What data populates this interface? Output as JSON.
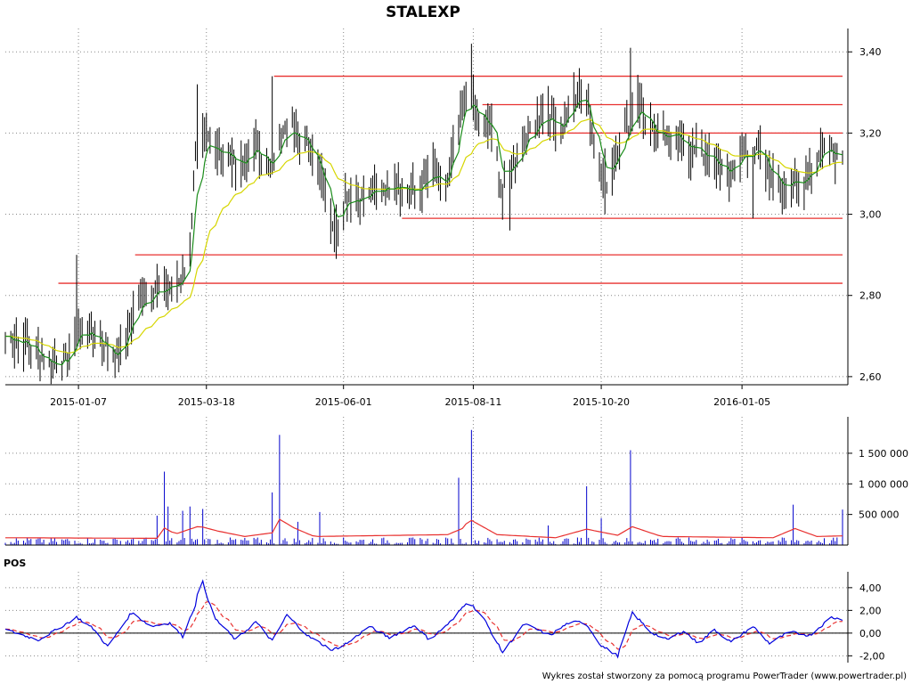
{
  "chart_data": {
    "title": "STALEXP",
    "footer": "Wykres został stworzony za pomocą programu PowerTrader (www.powertrader.pl)",
    "colors": {
      "candle": "#000000",
      "ma_short": "#1a8c1a",
      "ma_long": "#d6d600",
      "level": "#e8302f",
      "volume_bar": "#0000cc",
      "volume_ma": "#e8302f",
      "pos_line": "#0000dd",
      "pos_signal": "#e8302f",
      "grid": "#888888"
    },
    "price_panel": {
      "type": "bar",
      "ylim": [
        2.58,
        3.44
      ],
      "y_ticks": [
        "2,60",
        "2,80",
        "3,00",
        "3,20",
        "3,40"
      ],
      "x_ticks": [
        "2015-01-07",
        "2015-03-18",
        "2015-06-01",
        "2015-08-11",
        "2015-10-20",
        "2016-01-05"
      ],
      "grid": true,
      "support_resistance": [
        {
          "value": 2.83,
          "from": "2014-12-27",
          "to": "2016-02-29"
        },
        {
          "value": 2.9,
          "from": "2015-02-07",
          "to": "2016-02-29"
        },
        {
          "value": 2.99,
          "from": "2015-07-03",
          "to": "2016-02-29"
        },
        {
          "value": 3.2,
          "from": "2015-09-10",
          "to": "2016-02-29"
        },
        {
          "value": 3.27,
          "from": "2015-08-16",
          "to": "2016-02-29"
        },
        {
          "value": 3.34,
          "from": "2015-04-24",
          "to": "2016-02-29"
        }
      ],
      "anchors": [
        [
          "2014-11-28",
          2.7
        ],
        [
          "2014-12-10",
          2.68
        ],
        [
          "2014-12-22",
          2.63
        ],
        [
          "2015-01-01",
          2.64
        ],
        [
          "2015-01-07",
          2.72
        ],
        [
          "2015-01-13",
          2.71
        ],
        [
          "2015-01-21",
          2.68
        ],
        [
          "2015-01-28",
          2.64
        ],
        [
          "2015-02-03",
          2.72
        ],
        [
          "2015-02-10",
          2.8
        ],
        [
          "2015-02-20",
          2.81
        ],
        [
          "2015-03-02",
          2.83
        ],
        [
          "2015-03-08",
          2.86
        ],
        [
          "2015-03-12",
          3.13
        ],
        [
          "2015-03-17",
          3.2
        ],
        [
          "2015-03-27",
          3.15
        ],
        [
          "2015-04-07",
          3.12
        ],
        [
          "2015-04-14",
          3.17
        ],
        [
          "2015-04-21",
          3.11
        ],
        [
          "2015-04-28",
          3.19
        ],
        [
          "2015-05-05",
          3.22
        ],
        [
          "2015-05-12",
          3.17
        ],
        [
          "2015-05-20",
          3.1
        ],
        [
          "2015-05-27",
          2.96
        ],
        [
          "2015-06-03",
          3.05
        ],
        [
          "2015-06-11",
          3.04
        ],
        [
          "2015-06-20",
          3.06
        ],
        [
          "2015-06-30",
          3.08
        ],
        [
          "2015-07-10",
          3.05
        ],
        [
          "2015-07-20",
          3.1
        ],
        [
          "2015-07-27",
          3.06
        ],
        [
          "2015-08-04",
          3.25
        ],
        [
          "2015-08-08",
          3.32
        ],
        [
          "2015-08-14",
          3.23
        ],
        [
          "2015-08-22",
          3.2
        ],
        [
          "2015-08-27",
          3.05
        ],
        [
          "2015-09-03",
          3.14
        ],
        [
          "2015-09-12",
          3.22
        ],
        [
          "2015-09-20",
          3.25
        ],
        [
          "2015-09-28",
          3.2
        ],
        [
          "2015-10-06",
          3.3
        ],
        [
          "2015-10-12",
          3.29
        ],
        [
          "2015-10-17",
          3.14
        ],
        [
          "2015-10-24",
          3.07
        ],
        [
          "2015-10-31",
          3.2
        ],
        [
          "2015-11-05",
          3.23
        ],
        [
          "2015-11-08",
          3.3
        ],
        [
          "2015-11-12",
          3.25
        ],
        [
          "2015-11-20",
          3.17
        ],
        [
          "2015-11-28",
          3.21
        ],
        [
          "2015-12-06",
          3.16
        ],
        [
          "2015-12-14",
          3.15
        ],
        [
          "2015-12-22",
          3.12
        ],
        [
          "2015-12-30",
          3.1
        ],
        [
          "2016-01-07",
          3.16
        ],
        [
          "2016-01-15",
          3.15
        ],
        [
          "2016-01-22",
          3.08
        ],
        [
          "2016-01-30",
          3.07
        ],
        [
          "2016-02-07",
          3.08
        ],
        [
          "2016-02-14",
          3.13
        ],
        [
          "2016-02-20",
          3.18
        ],
        [
          "2016-02-28",
          3.14
        ]
      ],
      "spikes": [
        [
          "2015-03-14",
          3.32
        ],
        [
          "2015-04-24",
          3.34
        ],
        [
          "2015-08-10",
          3.42
        ],
        [
          "2015-10-09",
          3.36
        ],
        [
          "2015-11-06",
          3.41
        ],
        [
          "2015-01-07",
          2.9
        ]
      ],
      "dips": [
        [
          "2014-12-29",
          2.59
        ],
        [
          "2015-05-29",
          2.89
        ],
        [
          "2015-08-31",
          2.96
        ],
        [
          "2015-10-23",
          3.0
        ],
        [
          "2016-01-12",
          2.99
        ],
        [
          "2016-01-28",
          3.0
        ]
      ]
    },
    "volume_panel": {
      "type": "bar",
      "ylim": [
        0,
        1950000
      ],
      "y_ticks": [
        "500 000",
        "1 000 000",
        "1 500 000"
      ],
      "spikes": [
        [
          "2015-02-23",
          1200000
        ],
        [
          "2015-02-26",
          630000
        ],
        [
          "2015-03-06",
          560000
        ],
        [
          "2015-03-10",
          630000
        ],
        [
          "2015-03-15",
          590000
        ],
        [
          "2015-04-24",
          860000
        ],
        [
          "2015-04-27",
          1800000
        ],
        [
          "2015-05-20",
          540000
        ],
        [
          "2015-08-02",
          1100000
        ],
        [
          "2015-08-09",
          1880000
        ],
        [
          "2015-10-12",
          960000
        ],
        [
          "2015-11-06",
          1550000
        ],
        [
          "2016-02-03",
          660000
        ],
        [
          "2016-02-29",
          580000
        ],
        [
          "2015-02-20",
          480000
        ],
        [
          "2015-10-21",
          440000
        ],
        [
          "2015-05-08",
          380000
        ],
        [
          "2015-09-20",
          320000
        ]
      ],
      "ma_anchors": [
        [
          "2014-11-28",
          120000
        ],
        [
          "2015-02-19",
          110000
        ],
        [
          "2015-02-23",
          280000
        ],
        [
          "2015-03-01",
          180000
        ],
        [
          "2015-03-08",
          250000
        ],
        [
          "2015-03-14",
          310000
        ],
        [
          "2015-03-24",
          230000
        ],
        [
          "2015-04-08",
          140000
        ],
        [
          "2015-04-23",
          200000
        ],
        [
          "2015-04-27",
          420000
        ],
        [
          "2015-05-05",
          280000
        ],
        [
          "2015-05-16",
          140000
        ],
        [
          "2015-07-28",
          170000
        ],
        [
          "2015-08-05",
          270000
        ],
        [
          "2015-08-09",
          420000
        ],
        [
          "2015-08-24",
          170000
        ],
        [
          "2015-09-25",
          120000
        ],
        [
          "2015-10-12",
          260000
        ],
        [
          "2015-10-29",
          160000
        ],
        [
          "2015-11-06",
          300000
        ],
        [
          "2015-11-22",
          140000
        ],
        [
          "2016-01-22",
          120000
        ],
        [
          "2016-02-03",
          270000
        ],
        [
          "2016-02-15",
          140000
        ],
        [
          "2016-02-29",
          150000
        ]
      ]
    },
    "pos_panel": {
      "label": "POS",
      "ylim": [
        -2.6,
        5.4
      ],
      "y_ticks": [
        "-2,00",
        "0,00",
        "2,00",
        "4,00"
      ],
      "zero_line": 0,
      "anchors": [
        [
          "2014-11-28",
          0.3
        ],
        [
          "2014-12-16",
          -0.6
        ],
        [
          "2014-12-26",
          0.3
        ],
        [
          "2015-01-06",
          1.4
        ],
        [
          "2015-01-15",
          0.4
        ],
        [
          "2015-01-23",
          -1.2
        ],
        [
          "2015-02-05",
          1.8
        ],
        [
          "2015-02-16",
          0.6
        ],
        [
          "2015-02-26",
          0.9
        ],
        [
          "2015-03-05",
          -0.3
        ],
        [
          "2015-03-12",
          2.5
        ],
        [
          "2015-03-15",
          5.0
        ],
        [
          "2015-03-22",
          1.4
        ],
        [
          "2015-04-03",
          -0.6
        ],
        [
          "2015-04-14",
          1.0
        ],
        [
          "2015-04-23",
          -0.7
        ],
        [
          "2015-05-01",
          1.6
        ],
        [
          "2015-05-13",
          -0.3
        ],
        [
          "2015-05-26",
          -1.5
        ],
        [
          "2015-06-04",
          -0.8
        ],
        [
          "2015-06-15",
          0.6
        ],
        [
          "2015-06-26",
          -0.4
        ],
        [
          "2015-07-10",
          0.7
        ],
        [
          "2015-07-18",
          -0.6
        ],
        [
          "2015-07-31",
          1.2
        ],
        [
          "2015-08-08",
          2.9
        ],
        [
          "2015-08-17",
          1.2
        ],
        [
          "2015-08-27",
          -1.7
        ],
        [
          "2015-09-08",
          0.8
        ],
        [
          "2015-09-22",
          -0.2
        ],
        [
          "2015-10-02",
          0.9
        ],
        [
          "2015-10-11",
          1.0
        ],
        [
          "2015-10-20",
          -1.1
        ],
        [
          "2015-10-29",
          -2.0
        ],
        [
          "2015-11-06",
          1.8
        ],
        [
          "2015-11-16",
          0.1
        ],
        [
          "2015-11-25",
          -0.6
        ],
        [
          "2015-12-04",
          0.2
        ],
        [
          "2015-12-12",
          -0.9
        ],
        [
          "2015-12-21",
          0.3
        ],
        [
          "2015-12-30",
          -0.8
        ],
        [
          "2016-01-11",
          0.6
        ],
        [
          "2016-01-20",
          -0.9
        ],
        [
          "2016-01-31",
          0.1
        ],
        [
          "2016-02-11",
          -0.2
        ],
        [
          "2016-02-23",
          1.4
        ],
        [
          "2016-02-28",
          1.2
        ]
      ]
    }
  }
}
